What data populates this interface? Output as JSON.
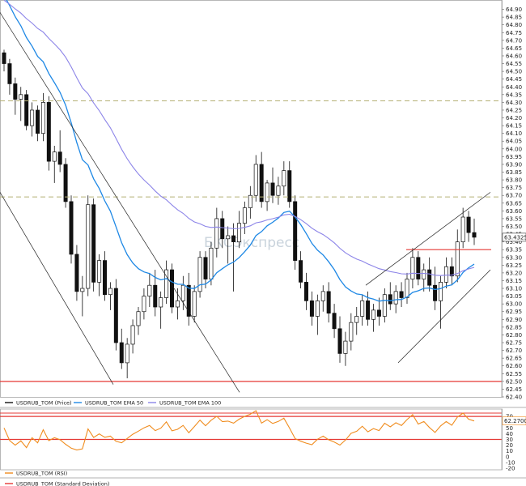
{
  "watermark": "БКСЭкспресс",
  "colors": {
    "candle": "#111111",
    "ema50": "#1e88e5",
    "ema100": "#8c84e8",
    "support": "#e53935",
    "dashed": "#b5b076",
    "rsi": "#f08c1e",
    "std": "#e53935"
  },
  "chart_data": [
    {
      "type": "candlestick",
      "series": [
        {
          "name": "USDRUB_TOM (Price)"
        },
        {
          "name": "USDRUB_TOM EMA 50",
          "color": "#1e88e5"
        },
        {
          "name": "USDRUB_TOM EMA 100",
          "color": "#8c84e8"
        }
      ],
      "last_value_label": "63.4325",
      "ylim": [
        62.4,
        64.95
      ],
      "y_ticks": [
        "64.90",
        "64.85",
        "64.80",
        "64.75",
        "64.70",
        "64.65",
        "64.60",
        "64.55",
        "64.50",
        "64.45",
        "64.40",
        "64.35",
        "64.30",
        "64.25",
        "64.20",
        "64.15",
        "64.10",
        "64.05",
        "64.00",
        "63.95",
        "63.90",
        "63.85",
        "63.80",
        "63.75",
        "63.70",
        "63.65",
        "63.60",
        "63.55",
        "63.50",
        "63.45",
        "63.40",
        "63.35",
        "63.30",
        "63.25",
        "63.20",
        "63.15",
        "63.10",
        "63.05",
        "63.00",
        "62.95",
        "62.90",
        "62.85",
        "62.80",
        "62.75",
        "62.70",
        "62.65",
        "62.60",
        "62.55",
        "62.50",
        "62.45",
        "62.40"
      ],
      "horizontal_levels": [
        {
          "value": 64.31,
          "style": "dashed",
          "color": "#b5b076"
        },
        {
          "value": 63.69,
          "style": "dashed",
          "color": "#b5b076"
        },
        {
          "value": 62.5,
          "style": "solid",
          "color": "#e53935"
        },
        {
          "value": 63.35,
          "style": "solid",
          "color": "#e53935",
          "partial": true
        }
      ],
      "candles": [
        [
          64.62,
          64.64,
          64.5,
          64.55
        ],
        [
          64.55,
          64.58,
          64.35,
          64.42
        ],
        [
          64.42,
          64.46,
          64.22,
          64.32
        ],
        [
          64.32,
          64.4,
          64.18,
          64.35
        ],
        [
          64.35,
          64.38,
          64.12,
          64.15
        ],
        [
          64.15,
          64.3,
          64.08,
          64.25
        ],
        [
          64.25,
          64.28,
          64.05,
          64.1
        ],
        [
          64.1,
          64.36,
          64.05,
          64.3
        ],
        [
          64.3,
          64.34,
          63.86,
          63.92
        ],
        [
          63.92,
          64.02,
          63.78,
          63.98
        ],
        [
          63.98,
          64.12,
          63.85,
          63.9
        ],
        [
          63.9,
          63.94,
          63.62,
          63.66
        ],
        [
          63.66,
          63.7,
          63.26,
          63.32
        ],
        [
          63.32,
          63.38,
          63.02,
          63.08
        ],
        [
          63.08,
          63.18,
          62.92,
          63.1
        ],
        [
          63.1,
          63.7,
          63.05,
          63.64
        ],
        [
          63.64,
          63.68,
          63.08,
          63.14
        ],
        [
          63.14,
          63.32,
          63.05,
          63.28
        ],
        [
          63.28,
          63.34,
          63.02,
          63.06
        ],
        [
          63.06,
          63.14,
          62.96,
          63.1
        ],
        [
          63.1,
          63.16,
          62.7,
          62.75
        ],
        [
          62.75,
          62.84,
          62.58,
          62.62
        ],
        [
          62.62,
          62.78,
          62.52,
          62.74
        ],
        [
          62.74,
          62.9,
          62.68,
          62.86
        ],
        [
          62.86,
          62.98,
          62.8,
          62.95
        ],
        [
          62.95,
          63.1,
          62.9,
          63.05
        ],
        [
          63.05,
          63.2,
          62.98,
          63.12
        ],
        [
          63.12,
          63.22,
          62.92,
          62.98
        ],
        [
          62.98,
          63.08,
          62.84,
          63.04
        ],
        [
          63.04,
          63.28,
          63.0,
          63.22
        ],
        [
          63.22,
          63.26,
          62.94,
          62.98
        ],
        [
          62.98,
          63.1,
          62.9,
          63.02
        ],
        [
          63.02,
          63.18,
          62.96,
          63.12
        ],
        [
          63.12,
          63.2,
          62.86,
          62.92
        ],
        [
          62.92,
          63.12,
          62.88,
          63.08
        ],
        [
          63.08,
          63.34,
          63.04,
          63.3
        ],
        [
          63.3,
          63.34,
          63.1,
          63.16
        ],
        [
          63.16,
          63.4,
          63.12,
          63.36
        ],
        [
          63.36,
          63.62,
          63.3,
          63.55
        ],
        [
          63.55,
          63.6,
          63.36,
          63.42
        ],
        [
          63.42,
          63.5,
          63.26,
          63.44
        ],
        [
          63.44,
          63.52,
          63.08,
          63.4
        ],
        [
          63.4,
          63.6,
          63.36,
          63.52
        ],
        [
          63.52,
          63.66,
          63.45,
          63.62
        ],
        [
          63.62,
          63.76,
          63.55,
          63.7
        ],
        [
          63.7,
          63.96,
          63.66,
          63.9
        ],
        [
          63.9,
          63.98,
          63.62,
          63.66
        ],
        [
          63.66,
          63.8,
          63.6,
          63.78
        ],
        [
          63.78,
          63.88,
          63.65,
          63.7
        ],
        [
          63.7,
          63.82,
          63.64,
          63.76
        ],
        [
          63.76,
          63.92,
          63.7,
          63.86
        ],
        [
          63.86,
          63.92,
          63.62,
          63.66
        ],
        [
          63.66,
          63.7,
          63.22,
          63.28
        ],
        [
          63.28,
          63.34,
          63.1,
          63.14
        ],
        [
          63.14,
          63.2,
          62.96,
          63.02
        ],
        [
          63.02,
          63.08,
          62.86,
          62.92
        ],
        [
          62.92,
          63.06,
          62.8,
          63.02
        ],
        [
          63.02,
          63.12,
          62.95,
          63.08
        ],
        [
          63.08,
          63.14,
          62.88,
          62.94
        ],
        [
          62.94,
          63.0,
          62.78,
          62.84
        ],
        [
          62.84,
          62.92,
          62.62,
          62.68
        ],
        [
          62.68,
          62.82,
          62.6,
          62.76
        ],
        [
          62.76,
          62.94,
          62.7,
          62.88
        ],
        [
          62.88,
          62.98,
          62.8,
          62.92
        ],
        [
          62.92,
          63.06,
          62.86,
          63.02
        ],
        [
          63.02,
          63.08,
          62.86,
          62.9
        ],
        [
          62.9,
          63.0,
          62.82,
          62.96
        ],
        [
          62.96,
          63.04,
          62.86,
          62.92
        ],
        [
          62.92,
          63.1,
          62.88,
          63.06
        ],
        [
          63.06,
          63.14,
          62.96,
          63.0
        ],
        [
          63.0,
          63.12,
          62.94,
          63.08
        ],
        [
          63.08,
          63.14,
          62.98,
          63.04
        ],
        [
          63.04,
          63.2,
          63.0,
          63.16
        ],
        [
          63.16,
          63.36,
          63.1,
          63.3
        ],
        [
          63.3,
          63.34,
          63.12,
          63.16
        ],
        [
          63.16,
          63.26,
          63.08,
          63.22
        ],
        [
          63.22,
          63.3,
          63.08,
          63.12
        ],
        [
          63.12,
          63.24,
          62.96,
          63.02
        ],
        [
          63.02,
          63.18,
          62.84,
          63.14
        ],
        [
          63.14,
          63.3,
          63.1,
          63.24
        ],
        [
          63.24,
          63.3,
          63.12,
          63.18
        ],
        [
          63.18,
          63.48,
          63.14,
          63.4
        ],
        [
          63.4,
          63.62,
          63.36,
          63.56
        ],
        [
          63.56,
          63.6,
          63.4,
          63.46
        ],
        [
          63.46,
          63.55,
          63.38,
          63.43
        ]
      ]
    },
    {
      "type": "line",
      "series": [
        {
          "name": "USDRUB_TOM (RSI)",
          "color": "#f08c1e"
        }
      ],
      "last_value_label": "62.2700",
      "ylim": [
        -20,
        80
      ],
      "y_ticks": [
        "70",
        "60",
        "50",
        "40",
        "30",
        "20",
        "10",
        "0",
        "-10",
        "-20"
      ]
    },
    {
      "type": "line",
      "series": [
        {
          "name": "USDRUB_TOM (Standard Deviation)",
          "color": "#e53935"
        }
      ]
    }
  ]
}
